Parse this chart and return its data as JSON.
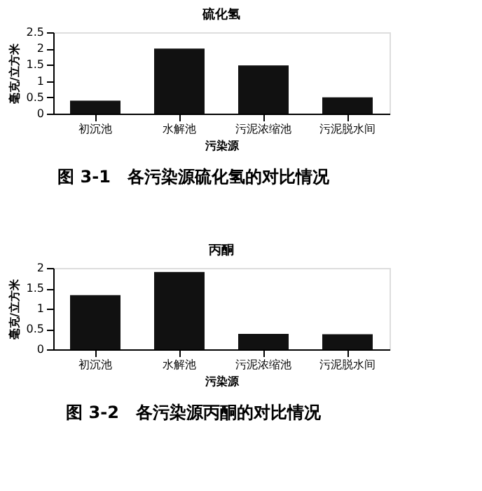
{
  "chart_data": [
    {
      "type": "bar",
      "title": "硫化氢",
      "xlabel": "污染源",
      "ylabel": "毫克/立方米",
      "categories": [
        "初沉池",
        "水解池",
        "污泥浓缩池",
        "污泥脱水间"
      ],
      "values": [
        0.4,
        2.0,
        1.48,
        0.5
      ],
      "color": "#111111",
      "ylim": [
        0,
        2.5
      ],
      "yticks": [
        0,
        0.5,
        1,
        1.5,
        2,
        2.5
      ],
      "grid": false,
      "annotations": [
        "图 3-1　各污染源硫化氢的对比情况"
      ]
    },
    {
      "type": "bar",
      "title": "丙酮",
      "xlabel": "污染源",
      "ylabel": "毫克/立方米",
      "categories": [
        "初沉池",
        "水解池",
        "污泥浓缩池",
        "污泥脱水间"
      ],
      "values": [
        1.33,
        1.9,
        0.38,
        0.37
      ],
      "color": "#111111",
      "ylim": [
        0,
        2
      ],
      "yticks": [
        0,
        0.5,
        1,
        1.5,
        2
      ],
      "grid": false,
      "annotations": [
        "图 3-2　各污染源丙酮的对比情况"
      ]
    }
  ]
}
